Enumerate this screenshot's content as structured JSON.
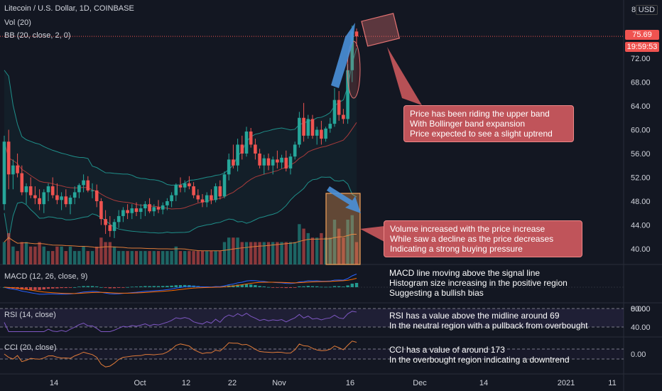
{
  "header": {
    "symbol": "Litecoin / U.S. Dollar, 1D, COINBASE",
    "volume": "Vol (20)",
    "bb": "BB (20, close, 2, 0)",
    "currency": "USD",
    "scale_top": "8"
  },
  "price_tag": "75.69",
  "countdown": "19:59:53",
  "panes": {
    "macd": "MACD (12, 26, close, 9)",
    "rsi": "RSI (14, close)",
    "cci": "CCI (20, close)"
  },
  "notes": {
    "bb_note": "Price has been riding the upper band\nWith Bollinger band expansion\nPrice expected to see a slight uptrend",
    "vol_note": "Volume increased with the price increase\nWhile saw a decline as the price decreases\nIndicating a strong buying pressure",
    "macd_note": "MACD line moving above the signal line\nHistogram size increasing in the positive region\nSuggesting a bullish bias",
    "rsi_note": "RSI has a value above the midline around 69\nIn the neutral region with a pullback from overbought",
    "cci_note": "CCI has a value of around 173\nIn the overbought region indicating a downtrend"
  },
  "colors": {
    "bull": "#26a69a",
    "bear": "#ef5350",
    "band": "#1f8f8a",
    "basis": "#a83b3b",
    "rsi": "#7e57c2",
    "cci": "#e07b39",
    "arrow": "#4a90d9",
    "annot": "#c0545a"
  },
  "chart_data": [
    {
      "type": "candlestick",
      "title": "Litecoin / U.S. Dollar, 1D, COINBASE",
      "price_axis_ticks": [
        "72.00",
        "68.00",
        "64.00",
        "60.00",
        "56.00",
        "52.00",
        "48.00",
        "44.00",
        "40.00"
      ],
      "x_tick_labels": [
        "14",
        "Oct",
        "12",
        "22",
        "Nov",
        "16",
        "Dec",
        "14",
        "2021",
        "11"
      ],
      "last_price": 75.69,
      "candles_ohlc": [
        [
          47.5,
          59,
          46.5,
          58
        ],
        [
          58,
          60,
          50,
          52.5
        ],
        [
          52.5,
          55,
          50,
          54
        ],
        [
          54,
          56,
          52,
          52.7
        ],
        [
          52.7,
          54,
          49,
          49.5
        ],
        [
          49.5,
          51,
          47.5,
          50.5
        ],
        [
          50.5,
          52,
          48.5,
          49
        ],
        [
          49,
          50.5,
          47.5,
          48.5
        ],
        [
          48.5,
          50,
          46.5,
          47.5
        ],
        [
          47.5,
          50,
          46,
          49.5
        ],
        [
          49.5,
          51,
          48,
          50.5
        ],
        [
          50.5,
          52,
          48.5,
          49
        ],
        [
          49,
          51,
          47.5,
          48.2
        ],
        [
          48.2,
          49.5,
          46.5,
          48.8
        ],
        [
          48.8,
          50,
          47,
          47.5
        ],
        [
          47.5,
          49,
          45.8,
          48.6
        ],
        [
          48.6,
          50.5,
          47.5,
          49.5
        ],
        [
          49.5,
          51,
          48.5,
          50.7
        ],
        [
          50.7,
          52.5,
          49.5,
          51.5
        ],
        [
          51.5,
          52.2,
          49.5,
          49.8
        ],
        [
          49.8,
          51,
          48.5,
          49.8
        ],
        [
          49.8,
          50.8,
          47,
          48
        ],
        [
          48,
          48.5,
          44,
          45
        ],
        [
          45,
          46.5,
          42.5,
          44
        ],
        [
          44,
          45.5,
          42,
          43
        ],
        [
          43,
          45,
          41.8,
          44.5
        ],
        [
          44.5,
          46.5,
          43.5,
          45.5
        ],
        [
          45.5,
          47,
          44.5,
          46.5
        ],
        [
          46.5,
          47.5,
          45,
          46
        ],
        [
          46,
          47.5,
          45,
          46.8
        ],
        [
          46.8,
          47.8,
          45.5,
          46.2
        ],
        [
          46.2,
          47.5,
          45,
          46.8
        ],
        [
          46.8,
          48,
          45.5,
          47.5
        ],
        [
          47.5,
          48.5,
          46,
          46.3
        ],
        [
          46.3,
          47.5,
          45.5,
          47
        ],
        [
          47,
          48.2,
          46,
          46.6
        ],
        [
          46.6,
          47.8,
          45.8,
          47.3
        ],
        [
          47.3,
          48.5,
          46.5,
          48
        ],
        [
          48,
          49.5,
          47,
          49
        ],
        [
          49,
          51,
          48,
          50.7
        ],
        [
          50.7,
          52,
          49.5,
          50.3
        ],
        [
          50.3,
          51.5,
          49.5,
          51
        ],
        [
          51,
          52.2,
          50,
          50.5
        ],
        [
          50.5,
          51.2,
          48.5,
          49
        ],
        [
          49,
          50,
          47.8,
          48.3
        ],
        [
          48.3,
          49.2,
          47,
          47.8
        ],
        [
          47.8,
          49.5,
          47,
          49
        ],
        [
          49,
          50,
          47.5,
          48.2
        ],
        [
          48.2,
          51,
          47.8,
          50.5
        ],
        [
          50.5,
          51.5,
          48.3,
          48.8
        ],
        [
          48.8,
          53,
          48.5,
          52.5
        ],
        [
          52.5,
          56,
          51.5,
          55
        ],
        [
          55,
          57.5,
          53.5,
          54
        ],
        [
          54,
          58.5,
          53,
          57.5
        ],
        [
          57.5,
          59,
          55,
          56
        ],
        [
          56,
          60.5,
          55.5,
          59.7
        ],
        [
          59.7,
          60.3,
          57,
          57.5
        ],
        [
          57.5,
          58.5,
          55,
          56
        ],
        [
          56,
          56.8,
          53.5,
          54
        ],
        [
          54,
          55.8,
          52.5,
          55.2
        ],
        [
          55.2,
          56,
          53.2,
          54
        ],
        [
          54,
          55.5,
          52.5,
          55
        ],
        [
          55,
          56.5,
          53.5,
          54.5
        ],
        [
          54.5,
          55.8,
          53.5,
          55.3
        ],
        [
          55.3,
          56.5,
          53,
          53.5
        ],
        [
          53.5,
          56,
          52.5,
          55.5
        ],
        [
          55.5,
          58,
          55,
          57.5
        ],
        [
          57.5,
          63,
          57,
          62
        ],
        [
          62,
          64.5,
          58,
          59
        ],
        [
          59,
          62.5,
          58.5,
          61.8
        ],
        [
          61.8,
          62.5,
          58.5,
          59
        ],
        [
          59,
          60.5,
          57.5,
          60
        ],
        [
          60,
          61.5,
          57.5,
          58.5
        ],
        [
          58.5,
          60.5,
          58,
          60.2
        ],
        [
          60.2,
          62,
          59.5,
          61
        ],
        [
          61,
          67,
          60.5,
          65
        ],
        [
          65,
          66.5,
          61.5,
          62.5
        ],
        [
          62.5,
          63.5,
          61,
          61.8
        ],
        [
          61.8,
          71,
          61,
          70
        ],
        [
          70,
          77.5,
          68,
          76.5
        ],
        [
          76.5,
          77,
          74,
          75.69
        ]
      ],
      "volume": [
        5,
        7,
        4,
        3,
        5,
        5,
        4,
        4,
        5,
        4,
        3,
        3,
        4,
        4,
        3,
        4,
        3,
        3,
        4,
        3,
        3,
        4,
        6,
        5,
        5,
        4,
        3,
        3,
        3,
        3,
        3,
        3,
        3,
        3,
        3,
        3,
        3,
        3,
        3,
        4,
        3,
        3,
        3,
        3,
        3,
        3,
        3,
        3,
        3,
        3,
        5,
        6,
        6,
        6,
        5,
        5,
        5,
        5,
        5,
        5,
        5,
        5,
        5,
        5,
        5,
        5,
        5,
        9,
        8,
        7,
        6,
        6,
        7,
        6,
        6,
        10,
        8,
        6,
        10,
        11,
        5
      ],
      "bollinger_band": "BB (20, close, 2, 0)"
    },
    {
      "type": "bar",
      "title": "MACD (12, 26, close, 9)",
      "y_tick_labels": [
        "0.00"
      ],
      "histogram_trend": "increasing in the positive region"
    },
    {
      "type": "line",
      "title": "RSI (14, close)",
      "y_tick_labels": [
        "80.00",
        "40.00"
      ],
      "last_value_annotated": 69
    },
    {
      "type": "line",
      "title": "CCI (20, close)",
      "y_tick_labels": [
        "0.00"
      ],
      "last_value_annotated": 173
    }
  ]
}
